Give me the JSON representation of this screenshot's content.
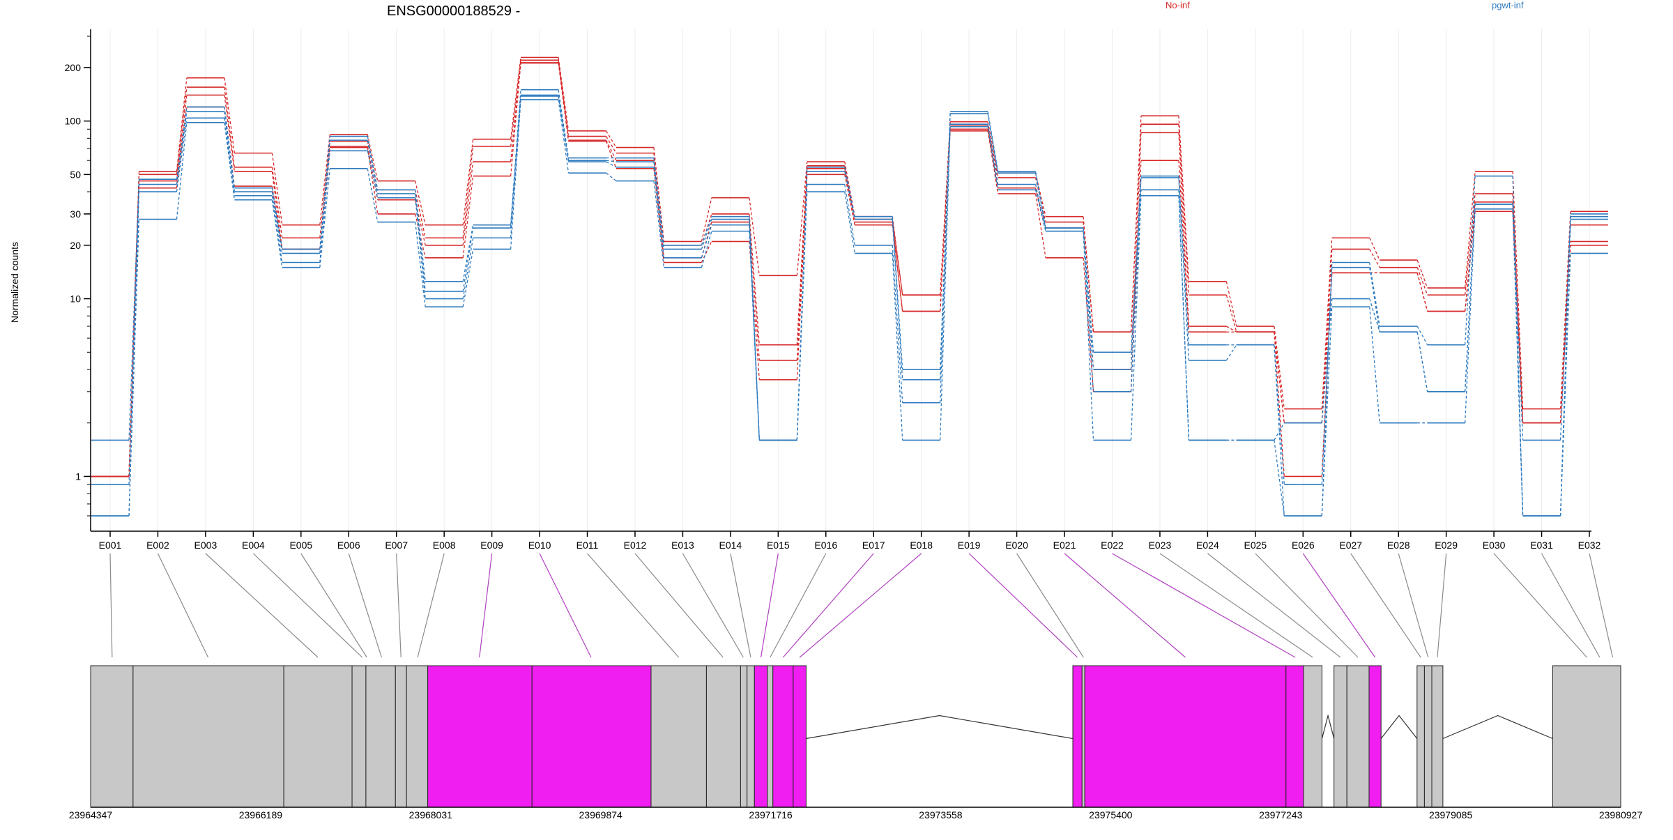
{
  "chart_data": {
    "type": "line",
    "title": "ENSG00000188529 -",
    "ylabel": "Normalized counts",
    "xlabel": "",
    "y_scale": "log",
    "ylim": [
      0.6,
      300
    ],
    "y_ticks": [
      1,
      10,
      20,
      30,
      50,
      100,
      200
    ],
    "legend": {
      "placement": "top",
      "entries": [
        {
          "name": "No-inf",
          "color": "#d62728"
        },
        {
          "name": "pgwt-inf",
          "color": "#2f7bbf"
        }
      ]
    },
    "categories": [
      "E001",
      "E002",
      "E003",
      "E004",
      "E005",
      "E006",
      "E007",
      "E008",
      "E009",
      "E010",
      "E011",
      "E012",
      "E013",
      "E014",
      "E015",
      "E016",
      "E017",
      "E018",
      "E019",
      "E020",
      "E021",
      "E022",
      "E023",
      "E024",
      "E025",
      "E026",
      "E027",
      "E028",
      "E029",
      "E030",
      "E031",
      "E032"
    ],
    "series": [
      {
        "group": "No-inf",
        "values": [
          1.0,
          52,
          175,
          66,
          26,
          84,
          46,
          26,
          79,
          228,
          88,
          71,
          21,
          37,
          13.5,
          59,
          29,
          10.5,
          99,
          51,
          29,
          6.5,
          107,
          12.5,
          7,
          2.4,
          22,
          16.5,
          11.5,
          52,
          2.4,
          31
        ]
      },
      {
        "group": "No-inf",
        "values": [
          1.0,
          50,
          155,
          55,
          22,
          77,
          41,
          22,
          72,
          220,
          82,
          66,
          20,
          30,
          5.5,
          56,
          28,
          10.5,
          95,
          48,
          27,
          6.5,
          96,
          10.5,
          6.5,
          2.0,
          19,
          15,
          10.5,
          39,
          2.0,
          26
        ]
      },
      {
        "group": "No-inf",
        "values": [
          1.0,
          46,
          140,
          52,
          19,
          72,
          36,
          20,
          59,
          213,
          78,
          60,
          17,
          27,
          4.5,
          54,
          27,
          8.5,
          90,
          42,
          25,
          4.0,
          86,
          7,
          6.5,
          2.0,
          14,
          14,
          8.5,
          35,
          2.0,
          21
        ]
      },
      {
        "group": "No-inf",
        "values": [
          1.0,
          42,
          120,
          43,
          19,
          71,
          30,
          17,
          49,
          212,
          77,
          54,
          16,
          21,
          3.5,
          50,
          26,
          8.5,
          88,
          39,
          17,
          3.0,
          60,
          6.5,
          6.5,
          1.0,
          14,
          14,
          8.5,
          31,
          2.0,
          20
        ]
      },
      {
        "group": "pgwt-inf",
        "values": [
          1.6,
          47,
          120,
          42,
          19,
          82,
          41,
          12.5,
          26,
          150,
          62,
          62,
          20,
          29,
          1.6,
          55,
          29,
          4,
          113,
          52,
          25,
          5,
          49,
          5.5,
          5.5,
          0.4,
          16,
          7,
          5.5,
          49,
          0.4,
          30
        ]
      },
      {
        "group": "pgwt-inf",
        "values": [
          0.9,
          44,
          113,
          40,
          18,
          78,
          39,
          11,
          25,
          140,
          60,
          59,
          19,
          28,
          1.6,
          52,
          28,
          3.5,
          110,
          51,
          25,
          4,
          48,
          4.5,
          5.5,
          0.9,
          15,
          6.5,
          3,
          34,
          0.4,
          29
        ]
      },
      {
        "group": "pgwt-inf",
        "values": [
          0.4,
          40,
          104,
          38,
          16,
          68,
          37,
          10,
          22,
          138,
          59,
          55,
          17,
          26,
          1.6,
          44,
          20,
          2.6,
          96,
          44,
          24,
          3,
          41,
          1.6,
          1.6,
          2.0,
          10,
          6.5,
          3,
          34,
          1.6,
          28
        ]
      },
      {
        "group": "pgwt-inf",
        "values": [
          0.4,
          28,
          98,
          36,
          15,
          54,
          27,
          9,
          19,
          132,
          51,
          46,
          15,
          24,
          1.6,
          40,
          18,
          1.6,
          93,
          41,
          24,
          1.6,
          38,
          1.6,
          1.6,
          0.4,
          9,
          2,
          2,
          32,
          0.4,
          18
        ]
      }
    ],
    "genome": {
      "coordinate_labels": [
        "23964347",
        "23966189",
        "23968031",
        "23969874",
        "23971716",
        "23973558",
        "23975400",
        "23977243",
        "23979085",
        "23980927"
      ],
      "coord_range": [
        23964347,
        23980927
      ],
      "exon_bins": [
        {
          "start": 23964347,
          "end": 23964807,
          "color": "gray"
        },
        {
          "start": 23964807,
          "end": 23966440,
          "color": "gray"
        },
        {
          "start": 23966440,
          "end": 23967180,
          "color": "gray"
        },
        {
          "start": 23967180,
          "end": 23967330,
          "color": "gray"
        },
        {
          "start": 23967330,
          "end": 23967650,
          "color": "gray"
        },
        {
          "start": 23967650,
          "end": 23967770,
          "color": "gray"
        },
        {
          "start": 23967770,
          "end": 23968000,
          "color": "gray"
        },
        {
          "start": 23968000,
          "end": 23969130,
          "color": "magenta"
        },
        {
          "start": 23969130,
          "end": 23970420,
          "color": "magenta"
        },
        {
          "start": 23970420,
          "end": 23971020,
          "color": "gray"
        },
        {
          "start": 23971020,
          "end": 23971390,
          "color": "gray"
        },
        {
          "start": 23971390,
          "end": 23971460,
          "color": "gray"
        },
        {
          "start": 23971460,
          "end": 23971540,
          "color": "gray"
        },
        {
          "start": 23971540,
          "end": 23971680,
          "color": "magenta"
        },
        {
          "start": 23971680,
          "end": 23971740,
          "color": "gray"
        },
        {
          "start": 23971740,
          "end": 23971960,
          "color": "magenta"
        },
        {
          "start": 23971960,
          "end": 23972100,
          "color": "magenta"
        },
        {
          "start": 23974990,
          "end": 23975090,
          "color": "magenta"
        },
        {
          "start": 23975090,
          "end": 23975120,
          "color": "gray"
        },
        {
          "start": 23975120,
          "end": 23977300,
          "color": "magenta"
        },
        {
          "start": 23977300,
          "end": 23977490,
          "color": "magenta"
        },
        {
          "start": 23977490,
          "end": 23977690,
          "color": "gray"
        },
        {
          "start": 23977820,
          "end": 23977960,
          "color": "gray"
        },
        {
          "start": 23977960,
          "end": 23978200,
          "color": "gray"
        },
        {
          "start": 23978200,
          "end": 23978330,
          "color": "magenta"
        },
        {
          "start": 23978720,
          "end": 23978800,
          "color": "gray"
        },
        {
          "start": 23978800,
          "end": 23978880,
          "color": "gray"
        },
        {
          "start": 23978880,
          "end": 23979000,
          "color": "gray"
        },
        {
          "start": 23980190,
          "end": 23980927,
          "color": "gray"
        }
      ],
      "introns": [
        [
          23972100,
          23974990
        ],
        [
          23977690,
          23977820
        ],
        [
          23978330,
          23978720
        ],
        [
          23979000,
          23980190
        ]
      ],
      "bin_links": [
        {
          "exon": "E001",
          "pos": 23964580,
          "color": "gray"
        },
        {
          "exon": "E002",
          "pos": 23965620,
          "color": "gray"
        },
        {
          "exon": "E003",
          "pos": 23966810,
          "color": "gray"
        },
        {
          "exon": "E004",
          "pos": 23967290,
          "color": "gray"
        },
        {
          "exon": "E005",
          "pos": 23967340,
          "color": "gray"
        },
        {
          "exon": "E006",
          "pos": 23967500,
          "color": "gray"
        },
        {
          "exon": "E007",
          "pos": 23967710,
          "color": "gray"
        },
        {
          "exon": "E008",
          "pos": 23967890,
          "color": "gray"
        },
        {
          "exon": "E009",
          "pos": 23968560,
          "color": "magenta"
        },
        {
          "exon": "E010",
          "pos": 23969770,
          "color": "magenta"
        },
        {
          "exon": "E011",
          "pos": 23970720,
          "color": "gray"
        },
        {
          "exon": "E012",
          "pos": 23971200,
          "color": "gray"
        },
        {
          "exon": "E013",
          "pos": 23971420,
          "color": "gray"
        },
        {
          "exon": "E014",
          "pos": 23971500,
          "color": "gray"
        },
        {
          "exon": "E015",
          "pos": 23971610,
          "color": "magenta"
        },
        {
          "exon": "E016",
          "pos": 23971710,
          "color": "gray"
        },
        {
          "exon": "E017",
          "pos": 23971850,
          "color": "magenta"
        },
        {
          "exon": "E018",
          "pos": 23972030,
          "color": "magenta"
        },
        {
          "exon": "E019",
          "pos": 23975040,
          "color": "magenta"
        },
        {
          "exon": "E020",
          "pos": 23975105,
          "color": "gray"
        },
        {
          "exon": "E021",
          "pos": 23976210,
          "color": "magenta"
        },
        {
          "exon": "E022",
          "pos": 23977400,
          "color": "magenta"
        },
        {
          "exon": "E023",
          "pos": 23977590,
          "color": "gray"
        },
        {
          "exon": "E024",
          "pos": 23977890,
          "color": "gray"
        },
        {
          "exon": "E025",
          "pos": 23978080,
          "color": "gray"
        },
        {
          "exon": "E026",
          "pos": 23978265,
          "color": "magenta"
        },
        {
          "exon": "E027",
          "pos": 23978760,
          "color": "gray"
        },
        {
          "exon": "E028",
          "pos": 23978840,
          "color": "gray"
        },
        {
          "exon": "E029",
          "pos": 23978940,
          "color": "gray"
        },
        {
          "exon": "E030",
          "pos": 23980560,
          "color": "gray"
        },
        {
          "exon": "E031",
          "pos": 23980700,
          "color": "gray"
        },
        {
          "exon": "E032",
          "pos": 23980840,
          "color": "gray"
        }
      ]
    },
    "colors": {
      "no_inf": "#d62728",
      "pgwt_inf": "#2f7bbf",
      "gray_bin": "#c8c8c8",
      "magenta_bin": "#f01ef0",
      "magenta_link": "#b040c0"
    }
  }
}
